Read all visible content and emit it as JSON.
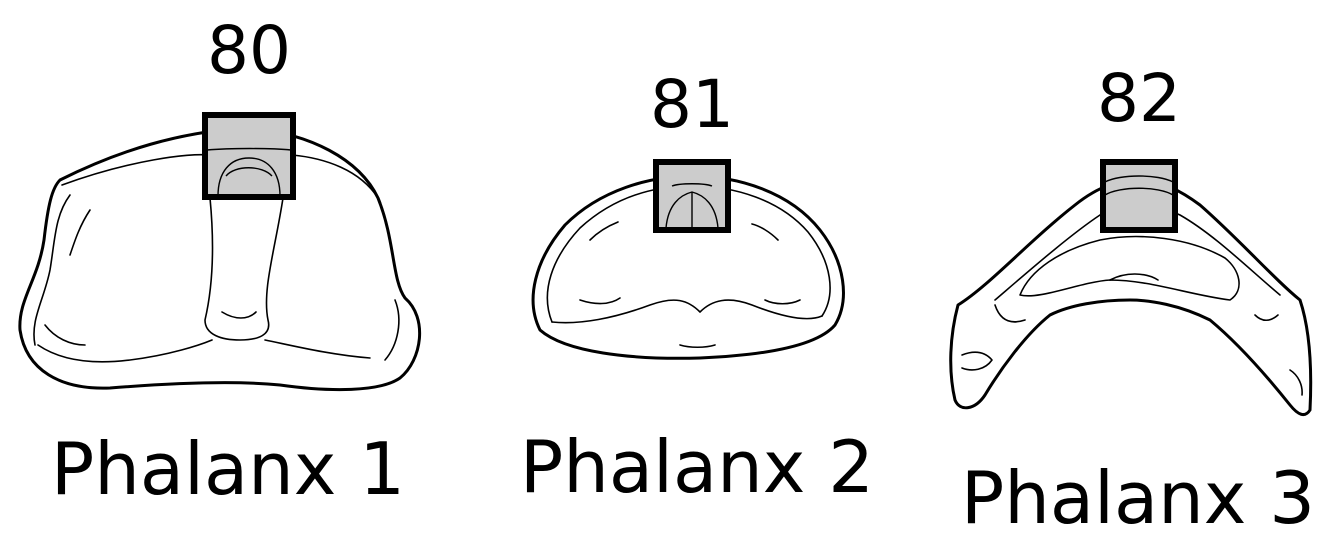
{
  "colors": {
    "highlight_fill": "#cccccc",
    "outline": "#000000",
    "background": "#ffffff"
  },
  "phalanges": [
    {
      "site_number": "80",
      "label": "Phalanx 1"
    },
    {
      "site_number": "81",
      "label": "Phalanx 2"
    },
    {
      "site_number": "82",
      "label": "Phalanx 3"
    }
  ]
}
